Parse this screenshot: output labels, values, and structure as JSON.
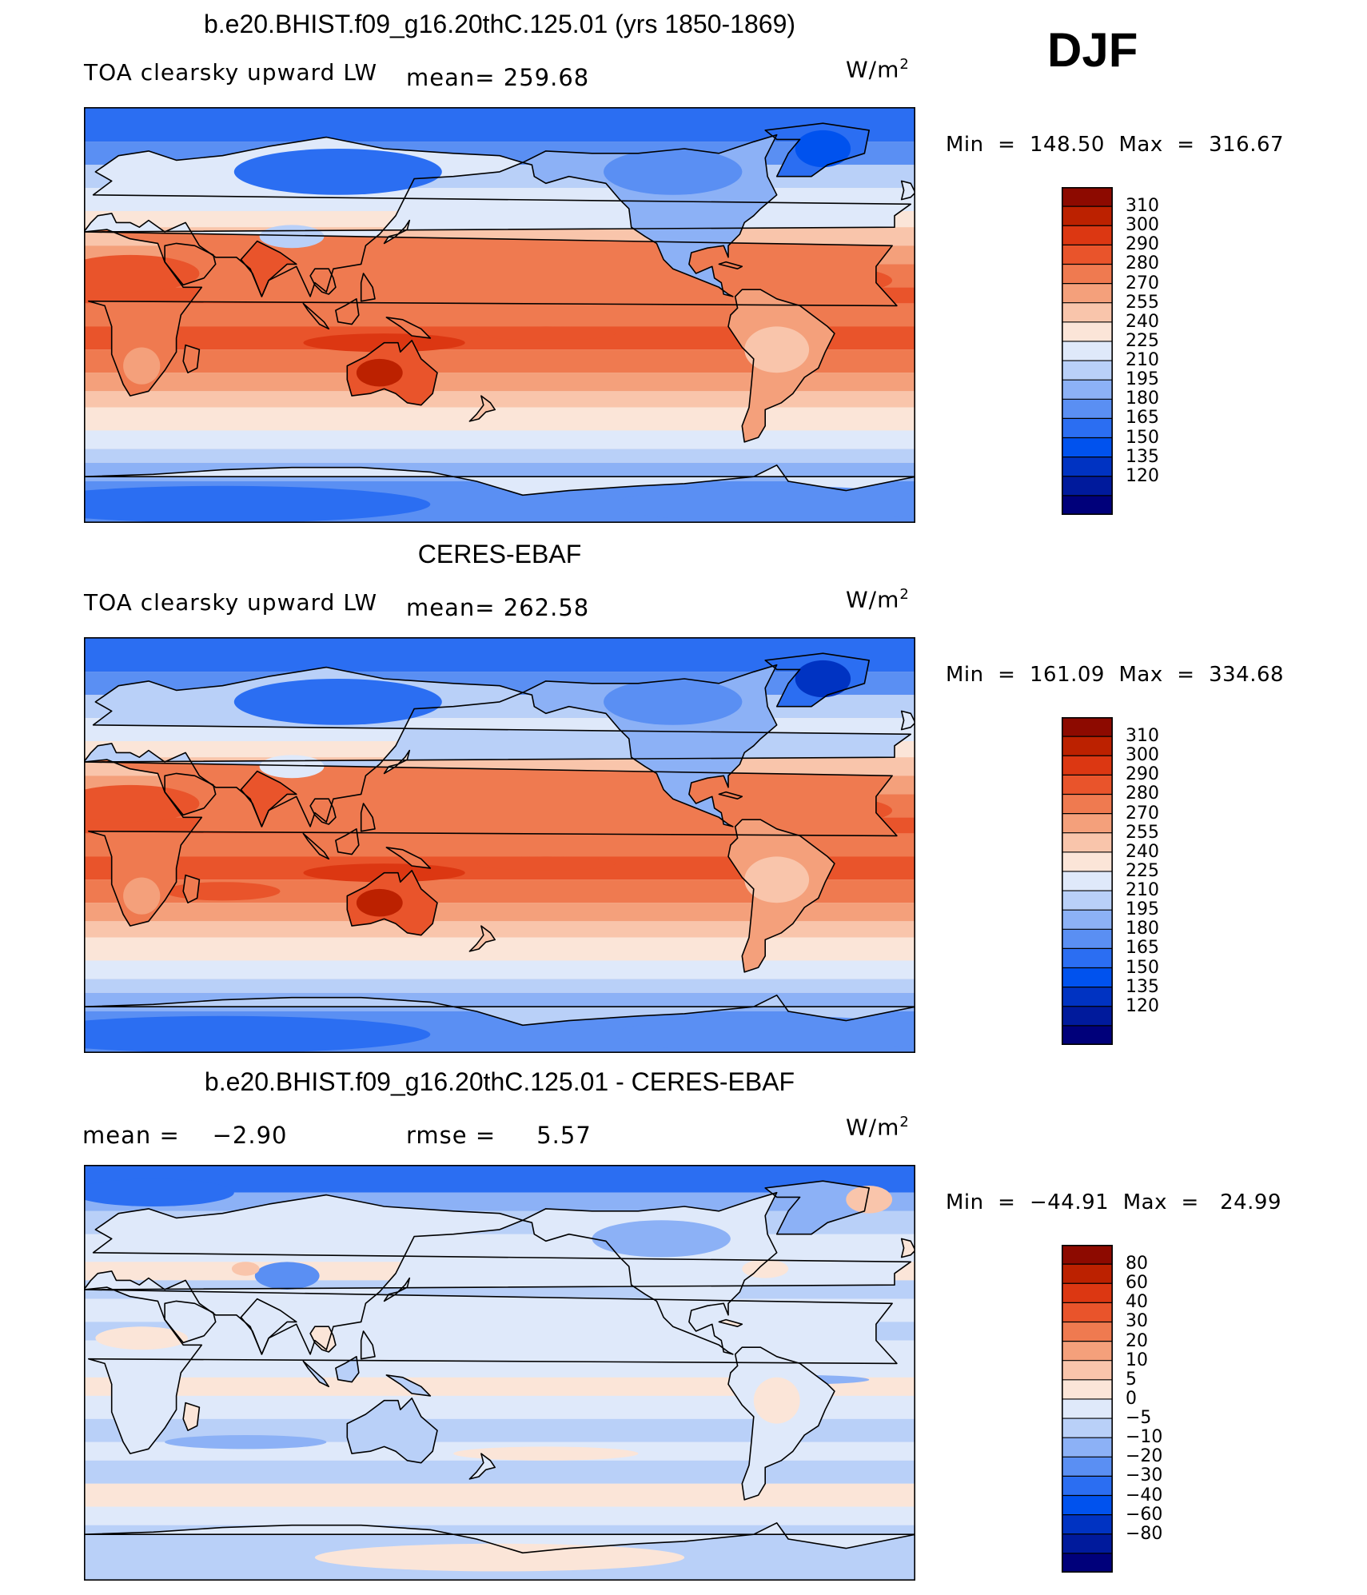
{
  "season": "DJF",
  "colors": {
    "abs_scale": [
      "#00007a",
      "#001a9c",
      "#0033c2",
      "#0052ee",
      "#2b6ef2",
      "#5a8ff3",
      "#8cb1f6",
      "#b9d0f8",
      "#dfe9fa",
      "#fbe5d8",
      "#f9c5ab",
      "#f4a07b",
      "#ef7a50",
      "#e9542b",
      "#dc3712",
      "#bc2100",
      "#8d0a00"
    ],
    "diff_scale": [
      "#00007a",
      "#001a9c",
      "#0033c2",
      "#0052ee",
      "#2b6ef2",
      "#5a8ff3",
      "#8cb1f6",
      "#b9d0f8",
      "#dfe9fa",
      "#fbe5d8",
      "#f9c5ab",
      "#f4a07b",
      "#ef7a50",
      "#e9542b",
      "#dc3712",
      "#bc2100",
      "#8d0a00"
    ]
  },
  "panels": [
    {
      "title": "b.e20.BHIST.f09_g16.20thC.125.01 (yrs 1850-1869)",
      "variable": "TOA clearsky upward LW",
      "mean_text": "mean= 259.68",
      "units": "W/m",
      "units_sup": "2",
      "minmax": "Min  =  148.50  Max  =  316.67",
      "levels": [
        "310",
        "300",
        "290",
        "280",
        "270",
        "255",
        "240",
        "225",
        "210",
        "195",
        "180",
        "165",
        "150",
        "135",
        "120"
      ],
      "kind": "model"
    },
    {
      "title": "CERES-EBAF",
      "variable": "TOA clearsky upward LW",
      "mean_text": "mean= 262.58",
      "units": "W/m",
      "units_sup": "2",
      "minmax": "Min  =  161.09  Max  =  334.68",
      "levels": [
        "310",
        "300",
        "290",
        "280",
        "270",
        "255",
        "240",
        "225",
        "210",
        "195",
        "180",
        "165",
        "150",
        "135",
        "120"
      ],
      "kind": "obs"
    },
    {
      "title": "b.e20.BHIST.f09_g16.20thC.125.01 - CERES-EBAF",
      "mean_text": "mean =    −2.90",
      "rmse_text": "rmse =     5.57",
      "units": "W/m",
      "units_sup": "2",
      "minmax": "Min  =  −44.91  Max  =   24.99",
      "levels": [
        "80",
        "60",
        "40",
        "30",
        "20",
        "10",
        "5",
        "0",
        "−5",
        "−10",
        "−20",
        "−30",
        "−40",
        "−60",
        "−80"
      ],
      "kind": "diff"
    }
  ]
}
